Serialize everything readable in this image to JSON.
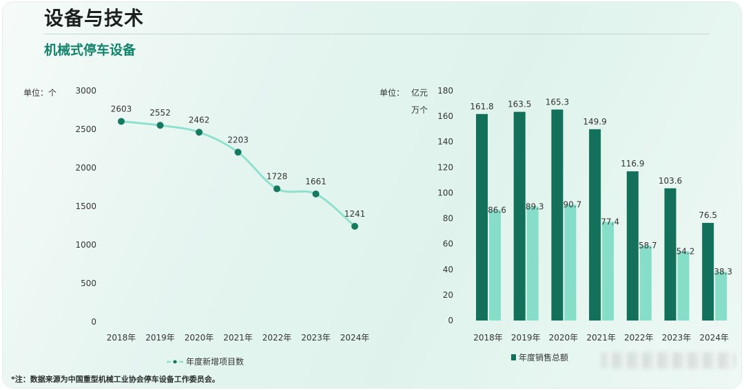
{
  "header": {
    "title": "设备与技术",
    "subtitle": "机械式停车设备"
  },
  "footnote": "*注：数据来源为中国重型机械工业协会停车设备工作委员会。",
  "colors": {
    "line": "#8fe0cc",
    "dot": "#157a5f",
    "bar_dark": "#13705a",
    "bar_light": "#86ddc8",
    "axis_text": "#333333",
    "title": "#1b1f1d",
    "subtitle": "#12836b"
  },
  "chart_data": [
    {
      "type": "line",
      "unit_label": "单位：个",
      "categories": [
        "2018年",
        "2019年",
        "2020年",
        "2021年",
        "2022年",
        "2023年",
        "2024年"
      ],
      "series": [
        {
          "name": "年度新增项目数",
          "values": [
            2603,
            2552,
            2462,
            2203,
            1728,
            1661,
            1241
          ]
        }
      ],
      "ylim": [
        0,
        3000
      ],
      "yticks": [
        0,
        500,
        1000,
        1500,
        2000,
        2500,
        3000
      ],
      "legend_position": "bottom"
    },
    {
      "type": "bar",
      "unit_label": "单位：",
      "unit_label_2": "亿元",
      "unit_label_3": "万个",
      "categories": [
        "2018年",
        "2019年",
        "2020年",
        "2021年",
        "2022年",
        "2023年",
        "2024年"
      ],
      "series": [
        {
          "name": "年度销售总额",
          "values": [
            161.8,
            163.5,
            165.3,
            149.9,
            116.9,
            103.6,
            76.5
          ]
        },
        {
          "name": "",
          "values": [
            86.6,
            89.3,
            90.7,
            77.4,
            58.7,
            54.2,
            38.3
          ]
        }
      ],
      "ylim": [
        0,
        180
      ],
      "yticks": [
        0,
        20,
        40,
        60,
        80,
        100,
        120,
        140,
        160,
        180
      ],
      "legend_position": "bottom"
    }
  ]
}
